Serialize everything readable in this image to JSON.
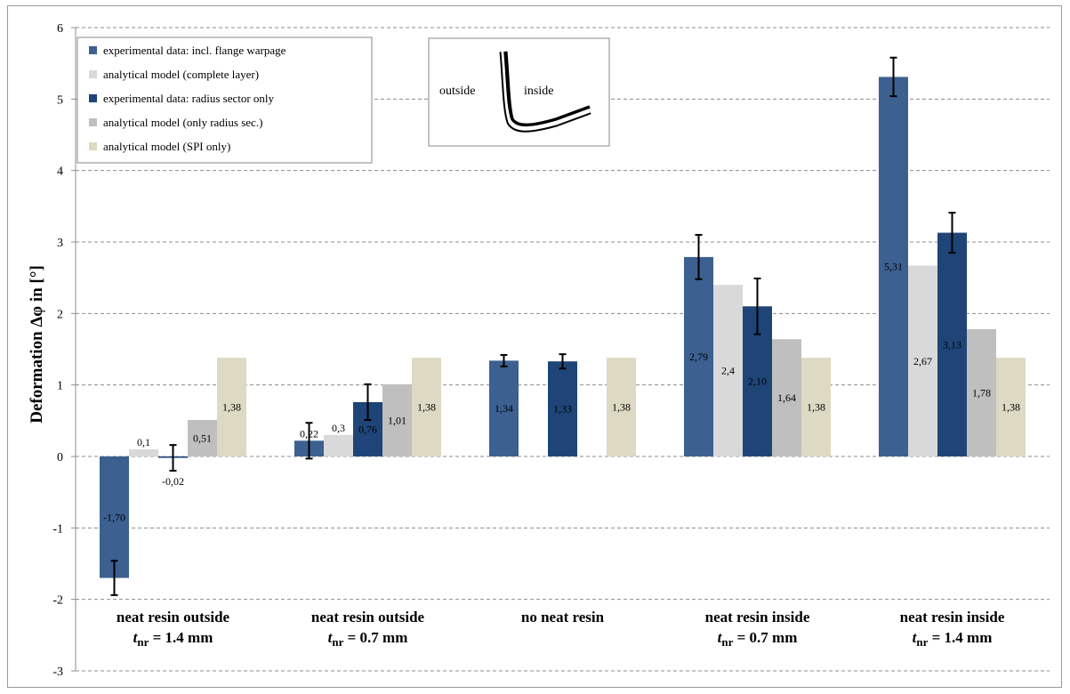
{
  "chart_data": {
    "type": "bar",
    "ylabel": "Deformation  Δφ in [°]",
    "ylim": [
      -3,
      6
    ],
    "yticks": [
      "-3",
      "-2",
      "-1",
      "0",
      "1",
      "2",
      "3",
      "4",
      "5",
      "6"
    ],
    "grid": true,
    "legend_position": "top-left",
    "categories": [
      {
        "line1": "neat resin outside",
        "var": "t",
        "sub": "nr",
        "rest": " = 1.4 mm"
      },
      {
        "line1": "neat resin outside",
        "var": "t",
        "sub": "nr",
        "rest": " = 0.7 mm"
      },
      {
        "line1": "no neat resin",
        "var": "",
        "sub": "",
        "rest": ""
      },
      {
        "line1": "neat resin inside",
        "var": "t",
        "sub": "nr",
        "rest": " = 0.7 mm"
      },
      {
        "line1": "neat resin inside",
        "var": "t",
        "sub": "nr",
        "rest": " = 1.4 mm"
      }
    ],
    "series": [
      {
        "name": "experimental data: incl. flange warpage",
        "color": "#3c6090",
        "values": [
          -1.7,
          0.22,
          1.34,
          2.79,
          5.31
        ],
        "labels": [
          "-1,70",
          "0,22",
          "1,34",
          "2,79",
          "5,31"
        ],
        "errors": [
          0.24,
          0.25,
          0.08,
          0.31,
          0.27
        ]
      },
      {
        "name": "analytical model (complete layer)",
        "color": "#d9d9d9",
        "values": [
          0.1,
          0.3,
          null,
          2.4,
          2.67
        ],
        "labels": [
          "0,1",
          "0,3",
          "",
          "2,4",
          "2,67"
        ],
        "errors": [
          null,
          null,
          null,
          null,
          null
        ]
      },
      {
        "name": "experimental data: radius sector only",
        "color": "#1f4578",
        "values": [
          -0.02,
          0.76,
          1.33,
          2.1,
          3.13
        ],
        "labels": [
          "-0,02",
          "0,76",
          "1,33",
          "2,10",
          "3,13"
        ],
        "errors": [
          0.18,
          0.25,
          0.1,
          0.39,
          0.28
        ]
      },
      {
        "name": "analytical model (only radius sec.)",
        "color": "#bfbfbf",
        "values": [
          0.51,
          1.01,
          null,
          1.64,
          1.78
        ],
        "labels": [
          "0,51",
          "1,01",
          "",
          "1,64",
          "1,78"
        ],
        "errors": [
          null,
          null,
          null,
          null,
          null
        ]
      },
      {
        "name": "analytical model (SPI only)",
        "color": "#ddd9c3",
        "values": [
          1.38,
          1.38,
          1.38,
          1.38,
          1.38
        ],
        "labels": [
          "1,38",
          "1,38",
          "1,38",
          "1,38",
          "1,38"
        ],
        "errors": [
          null,
          null,
          null,
          null,
          null
        ]
      }
    ],
    "inset": {
      "left_label": "outside",
      "right_label": "inside"
    }
  }
}
